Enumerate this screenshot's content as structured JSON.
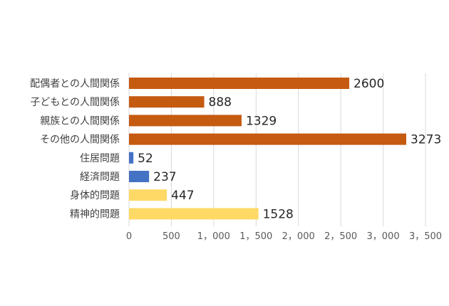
{
  "chart_data": {
    "type": "bar",
    "orientation": "horizontal",
    "categories": [
      "配偶者との人間関係",
      "子どもとの人間関係",
      "親族との人間関係",
      "その他の人間関係",
      "住居問題",
      "経済問題",
      "身体的問題",
      "精神的問題"
    ],
    "values": [
      2600,
      888,
      1329,
      3273,
      52,
      237,
      447,
      1528
    ],
    "bar_colors": [
      "#C55A11",
      "#C55A11",
      "#C55A11",
      "#C55A11",
      "#4472C4",
      "#4472C4",
      "#FFD966",
      "#FFD966"
    ],
    "data_labels": [
      "2600",
      "888",
      "1329",
      "3273",
      "52",
      "237",
      "447",
      "1528"
    ],
    "xlim": [
      0,
      3500
    ],
    "x_ticks": [
      0,
      500,
      1000,
      1500,
      2000,
      2500,
      3000,
      3500
    ],
    "x_tick_labels": [
      "0",
      "500",
      "1，000",
      "1，500",
      "2，000",
      "2，500",
      "3，000",
      "3，500"
    ],
    "grid": true,
    "legend": "none"
  }
}
